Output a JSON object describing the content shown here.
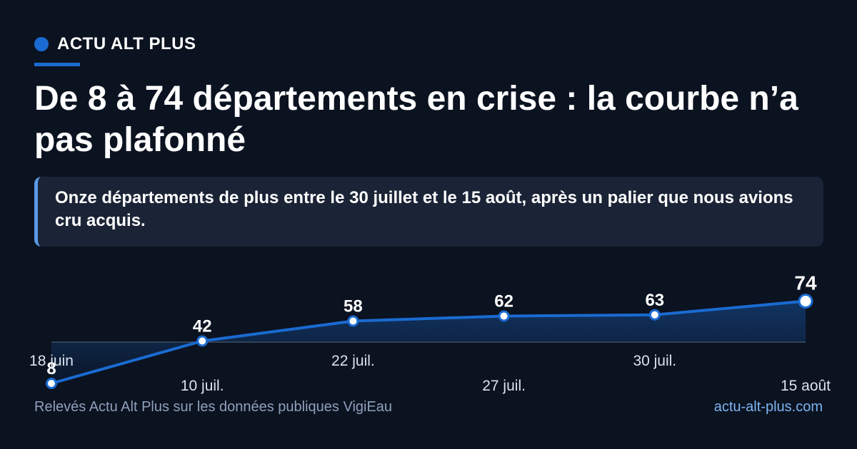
{
  "brand": {
    "name": "ACTU ALT PLUS"
  },
  "headline": "De 8 à 74 départements en crise : la courbe n’a pas plafonné",
  "summary": "Onze départements de plus entre le 30 juillet et le 15 août, après un palier que nous avions cru acquis.",
  "footer": {
    "source": "Relevés Actu Alt Plus sur les données publiques VigiEau",
    "url": "actu-alt-plus.com"
  },
  "colors": {
    "accent": "#1a6bd1",
    "background": "#0b1220",
    "panel": "#1b2436"
  },
  "chart_data": {
    "type": "area",
    "categories": [
      "18 juin",
      "10 juil.",
      "22 juil.",
      "27 juil.",
      "30 juil.",
      "15 août"
    ],
    "values": [
      8,
      42,
      58,
      62,
      63,
      74
    ],
    "data_labels": [
      "8",
      "42",
      "58",
      "62",
      "63",
      "74"
    ],
    "title": "",
    "xlabel": "",
    "ylabel": "",
    "ylim": [
      0,
      80
    ],
    "grid": false,
    "legend": "none"
  }
}
